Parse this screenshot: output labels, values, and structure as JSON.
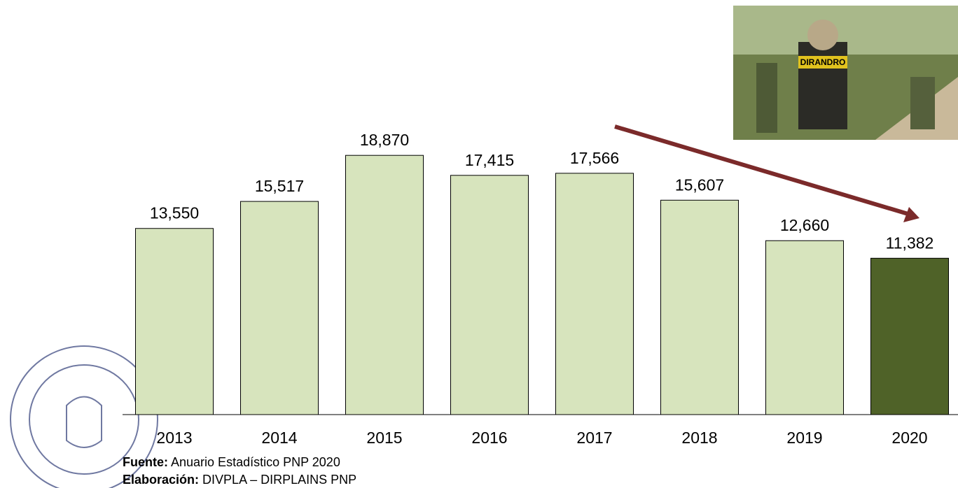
{
  "chart_data": {
    "type": "bar",
    "categories": [
      "2013",
      "2014",
      "2015",
      "2016",
      "2017",
      "2018",
      "2019",
      "2020"
    ],
    "values": [
      13550,
      15517,
      18870,
      17415,
      17566,
      15607,
      12660,
      11382
    ],
    "value_labels": [
      "13,550",
      "15,517",
      "18,870",
      "17,415",
      "17,566",
      "15,607",
      "12,660",
      "11,382"
    ],
    "colors": [
      "#d7e4bd",
      "#d7e4bd",
      "#d7e4bd",
      "#d7e4bd",
      "#d7e4bd",
      "#d7e4bd",
      "#d7e4bd",
      "#4f6228"
    ],
    "ylim": [
      0,
      20000
    ],
    "source_label": "Fuente:",
    "source": "Anuario Estadístico PNP 2020",
    "credit_label": "Elaboración:",
    "credit": "DIVPLA – DIRPLAINS PNP",
    "photo_caption": "DIRANDRO"
  }
}
